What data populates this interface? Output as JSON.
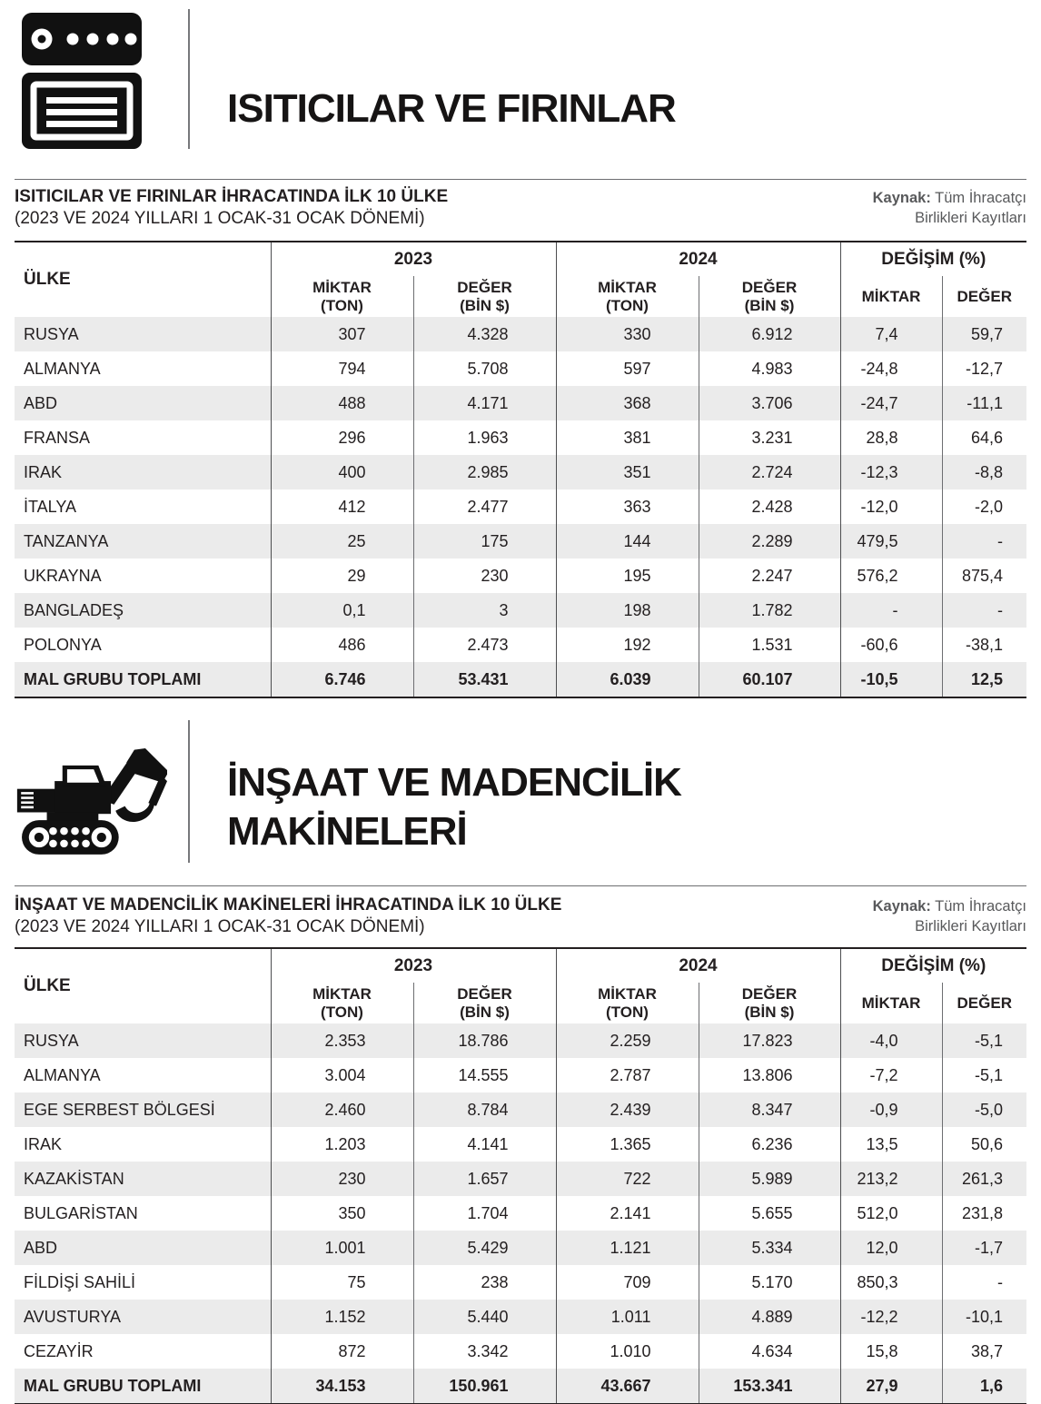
{
  "colors": {
    "text": "#231f20",
    "muted_grey": "#58595b",
    "row_stripe": "#ebebeb",
    "rule_grey": "#6d6e71",
    "border_dark": "#231f20"
  },
  "sections": [
    {
      "id": "heaters",
      "icon": "oven-icon",
      "title_line1": "ISITICILAR VE FIRINLAR",
      "title_line2": "",
      "table": {
        "title": "ISITICILAR VE FIRINLAR İHRACATINDA İLK 10 ÜLKE",
        "subtitle": "(2023 VE 2024 YILLARI 1 OCAK-31 OCAK DÖNEMİ)",
        "source_label": "Kaynak:",
        "source_text": "Tüm İhracatçı Birlikleri Kayıtları",
        "headers": {
          "country": "ÜLKE",
          "y2023": "2023",
          "y2024": "2024",
          "change": "DEĞİŞİM (%)",
          "qty": "MİKTAR",
          "qty_unit": "(TON)",
          "val": "DEĞER",
          "val_unit": "(BİN $)"
        },
        "rows": [
          [
            "RUSYA",
            "307",
            "4.328",
            "330",
            "6.912",
            "7,4",
            "59,7"
          ],
          [
            "ALMANYA",
            "794",
            "5.708",
            "597",
            "4.983",
            "-24,8",
            "-12,7"
          ],
          [
            "ABD",
            "488",
            "4.171",
            "368",
            "3.706",
            "-24,7",
            "-11,1"
          ],
          [
            "FRANSA",
            "296",
            "1.963",
            "381",
            "3.231",
            "28,8",
            "64,6"
          ],
          [
            "IRAK",
            "400",
            "2.985",
            "351",
            "2.724",
            "-12,3",
            "-8,8"
          ],
          [
            "İTALYA",
            "412",
            "2.477",
            "363",
            "2.428",
            "-12,0",
            "-2,0"
          ],
          [
            "TANZANYA",
            "25",
            "175",
            "144",
            "2.289",
            "479,5",
            "-"
          ],
          [
            "UKRAYNA",
            "29",
            "230",
            "195",
            "2.247",
            "576,2",
            "875,4"
          ],
          [
            "BANGLADEŞ",
            "0,1",
            "3",
            "198",
            "1.782",
            "-",
            "-"
          ],
          [
            "POLONYA",
            "486",
            "2.473",
            "192",
            "1.531",
            "-60,6",
            "-38,1"
          ],
          [
            "MAL GRUBU TOPLAMI",
            "6.746",
            "53.431",
            "6.039",
            "60.107",
            "-10,5",
            "12,5"
          ]
        ]
      }
    },
    {
      "id": "construction-mining",
      "icon": "excavator-icon",
      "title_line1": "İNŞAAT VE MADENCİLİK",
      "title_line2": "MAKİNELERİ",
      "table": {
        "title": "İNŞAAT VE MADENCİLİK MAKİNELERİ İHRACATINDA İLK 10 ÜLKE",
        "subtitle": "(2023 VE 2024 YILLARI 1 OCAK-31 OCAK DÖNEMİ)",
        "source_label": "Kaynak:",
        "source_text": "Tüm İhracatçı Birlikleri Kayıtları",
        "headers": {
          "country": "ÜLKE",
          "y2023": "2023",
          "y2024": "2024",
          "change": "DEĞİŞİM (%)",
          "qty": "MİKTAR",
          "qty_unit": "(TON)",
          "val": "DEĞER",
          "val_unit": "(BİN $)"
        },
        "rows": [
          [
            "RUSYA",
            "2.353",
            "18.786",
            "2.259",
            "17.823",
            "-4,0",
            "-5,1"
          ],
          [
            "ALMANYA",
            "3.004",
            "14.555",
            "2.787",
            "13.806",
            "-7,2",
            "-5,1"
          ],
          [
            "EGE SERBEST BÖLGESİ",
            "2.460",
            "8.784",
            "2.439",
            "8.347",
            "-0,9",
            "-5,0"
          ],
          [
            "IRAK",
            "1.203",
            "4.141",
            "1.365",
            "6.236",
            "13,5",
            "50,6"
          ],
          [
            "KAZAKİSTAN",
            "230",
            "1.657",
            "722",
            "5.989",
            "213,2",
            "261,3"
          ],
          [
            "BULGARİSTAN",
            "350",
            "1.704",
            "2.141",
            "5.655",
            "512,0",
            "231,8"
          ],
          [
            "ABD",
            "1.001",
            "5.429",
            "1.121",
            "5.334",
            "12,0",
            "-1,7"
          ],
          [
            "FİLDİŞİ SAHİLİ",
            "75",
            "238",
            "709",
            "5.170",
            "850,3",
            "-"
          ],
          [
            "AVUSTURYA",
            "1.152",
            "5.440",
            "1.011",
            "4.889",
            "-12,2",
            "-10,1"
          ],
          [
            "CEZAYİR",
            "872",
            "3.342",
            "1.010",
            "4.634",
            "15,8",
            "38,7"
          ],
          [
            "MAL GRUBU TOPLAMI",
            "34.153",
            "150.961",
            "43.667",
            "153.341",
            "27,9",
            "1,6"
          ]
        ]
      }
    }
  ]
}
